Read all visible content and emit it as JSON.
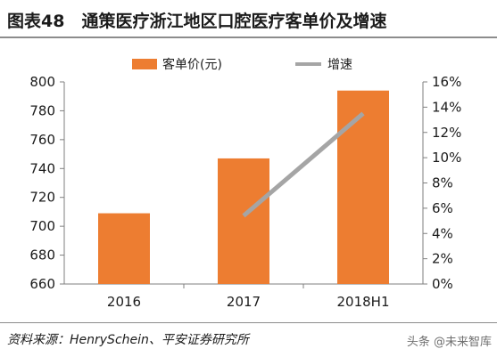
{
  "header": {
    "title": "图表48　通策医疗浙江地区口腔医疗客单价及增速"
  },
  "footer": {
    "source": "资料来源：HenrySchein、平安证券研究所",
    "watermark": "头条 @未来智库"
  },
  "colors": {
    "bar": "#ED7D31",
    "line": "#A5A5A5",
    "text": "#1b1b1b",
    "axis": "#7f7f7f"
  },
  "chart_data": {
    "type": "bar",
    "categories": [
      "2016",
      "2017",
      "2018H1"
    ],
    "series": [
      {
        "name": "客单价(元)",
        "type": "bar",
        "axis": "left",
        "values": [
          709,
          747,
          794
        ]
      },
      {
        "name": "增速",
        "type": "line",
        "axis": "right",
        "values": [
          null,
          0.054,
          0.135
        ]
      }
    ],
    "y_left": {
      "lim": [
        660,
        800
      ],
      "ticks": [
        "660",
        "680",
        "700",
        "720",
        "740",
        "760",
        "780",
        "800"
      ]
    },
    "y_right": {
      "lim": [
        0,
        0.16
      ],
      "ticks": [
        "0%",
        "2%",
        "4%",
        "6%",
        "8%",
        "10%",
        "12%",
        "14%",
        "16%"
      ]
    },
    "legend": {
      "position": "top",
      "labels": [
        "客单价(元)",
        "增速"
      ]
    },
    "grid": false
  }
}
